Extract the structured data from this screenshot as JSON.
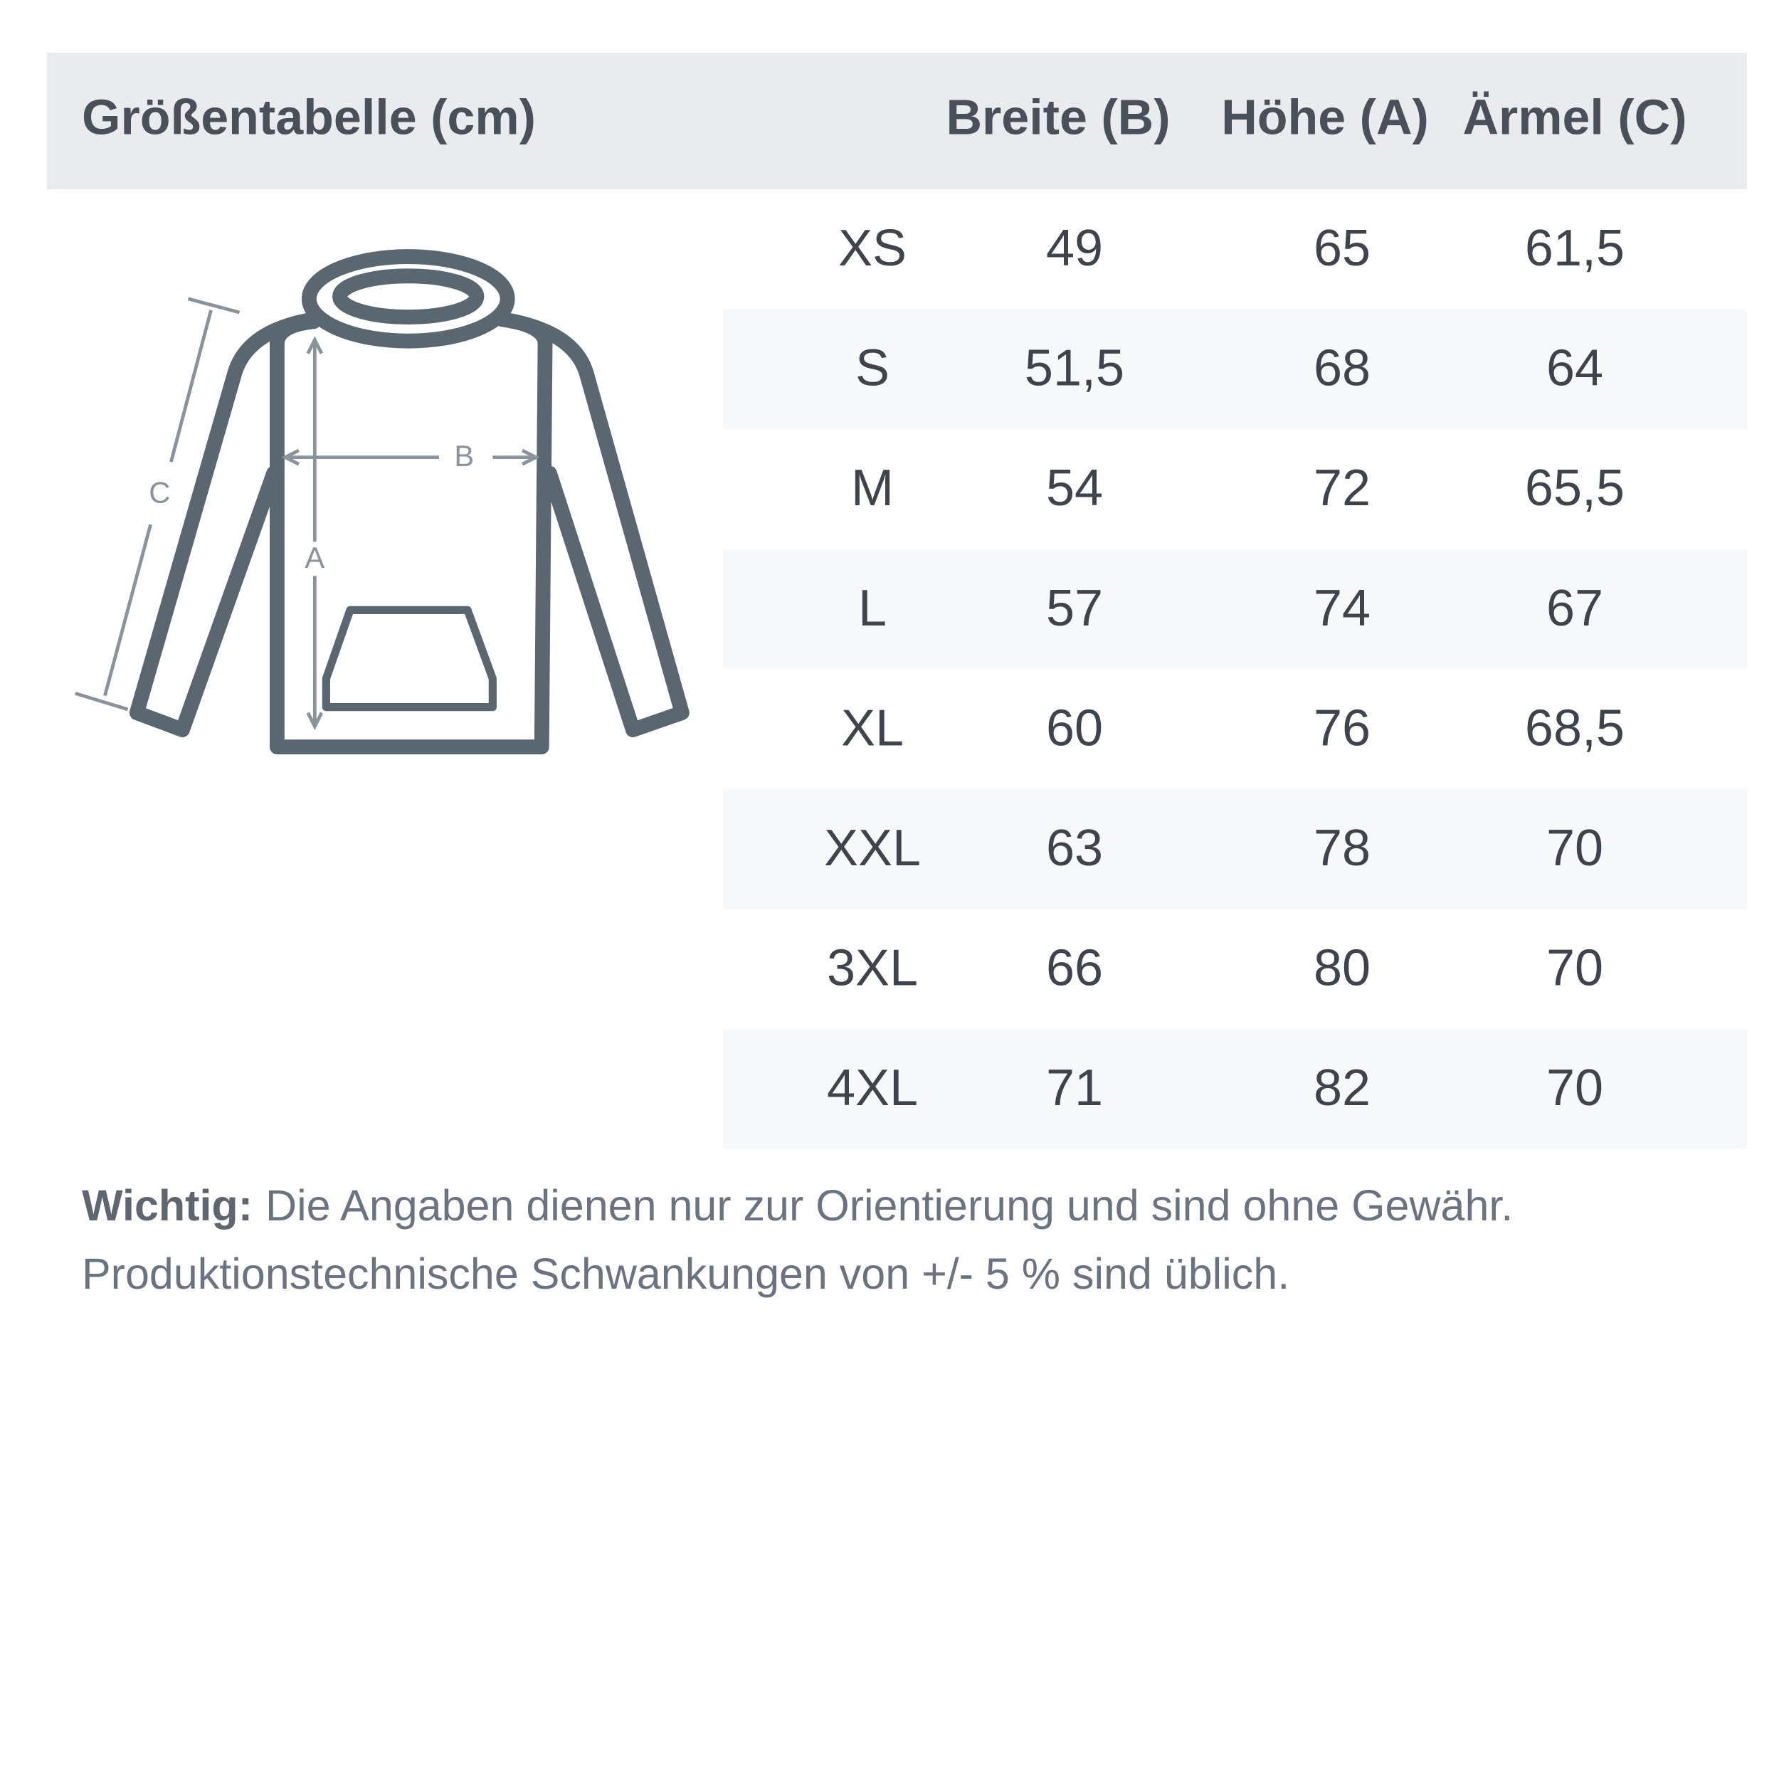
{
  "header": {
    "title": "Größentabelle (cm)",
    "columns": [
      "Breite (B)",
      "Höhe (A)",
      "Ärmel (C)"
    ]
  },
  "diagram": {
    "labels": [
      "C",
      "B",
      "A"
    ]
  },
  "table": {
    "rows": [
      [
        "XS",
        "49",
        "65",
        "61,5"
      ],
      [
        "S",
        "51,5",
        "68",
        "64"
      ],
      [
        "M",
        "54",
        "72",
        "65,5"
      ],
      [
        "L",
        "57",
        "74",
        "67"
      ],
      [
        "XL",
        "60",
        "76",
        "68,5"
      ],
      [
        "XXL",
        "63",
        "78",
        "70"
      ],
      [
        "3XL",
        "66",
        "80",
        "70"
      ],
      [
        "4XL",
        "71",
        "82",
        "70"
      ]
    ]
  },
  "note": {
    "label": "Wichtig:",
    "line1": "Die Angaben dienen nur zur Orientierung und sind ohne Gewähr.",
    "line2": "Produktionstechnische Schwankungen von +/- 5 % sind üblich."
  }
}
